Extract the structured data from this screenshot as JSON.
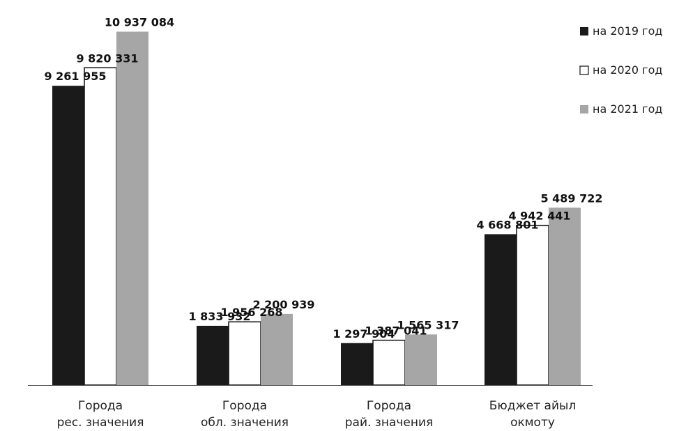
{
  "chart_data": {
    "type": "bar",
    "categories": [
      [
        "Города",
        "рес. значения"
      ],
      [
        "Города",
        "обл. значения"
      ],
      [
        "Города",
        "рай. значения"
      ],
      [
        "Бюджет айыл",
        "окмоту"
      ]
    ],
    "series": [
      {
        "name": "на 2019 год",
        "color": "#1a1a1a",
        "values": [
          9261955,
          1833932,
          1297904,
          4668801
        ],
        "labels": [
          "9 261 955",
          "1 833 932",
          "1 297 904",
          "4 668 801"
        ]
      },
      {
        "name": "на 2020 год",
        "color": "#ffffff",
        "values": [
          9820331,
          1956268,
          1387041,
          4942441
        ],
        "labels": [
          "9 820 331",
          "1 956 268",
          "1 387 041",
          "4 942 441"
        ]
      },
      {
        "name": "на 2021 год",
        "color": "#a6a6a6",
        "values": [
          10937084,
          2200939,
          1565317,
          5489722
        ],
        "labels": [
          "10 937 084",
          "2 200 939",
          "1 565 317",
          "5 489 722"
        ]
      }
    ],
    "ylim": [
      0,
      11400000
    ],
    "grid": false,
    "legend_position": "top-right"
  }
}
